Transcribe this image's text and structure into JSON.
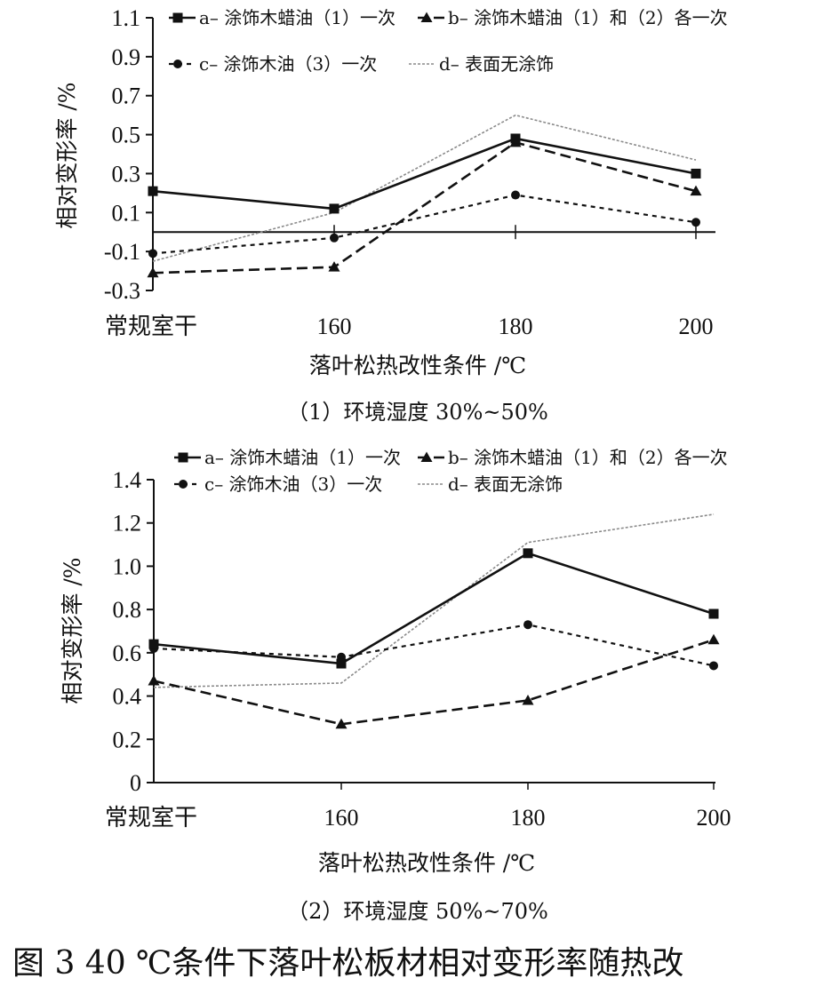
{
  "figure_caption": "图 3   40 ℃条件下落叶松板材相对变形率随热改",
  "legend": {
    "a": "a– 涂饰木蜡油（1）一次",
    "b": "b– 涂饰木蜡油（1）和（2）各一次",
    "c": "c– 涂饰木油（3）一次",
    "d": "d– 表面无涂饰"
  },
  "colors": {
    "a": "#111111",
    "b": "#111111",
    "c": "#111111",
    "d": "#8a8a8a"
  },
  "chart_data": [
    {
      "type": "line",
      "caption": "（1）环境湿度 30%~50%",
      "xlabel": "落叶松热改性条件 /℃",
      "ylabel": "相对变形率 /%",
      "categories": [
        "常规室干",
        "160",
        "180",
        "200"
      ],
      "yticks": [
        "1.1",
        "0.9",
        "0.7",
        "0.5",
        "0.3",
        "0.1",
        "-0.1",
        "-0.3"
      ],
      "ylim": [
        -0.3,
        1.1
      ],
      "zero_line": true,
      "series": [
        {
          "key": "a",
          "name": "a– 涂饰木蜡油（1）一次",
          "values": [
            0.21,
            0.12,
            0.48,
            0.3
          ]
        },
        {
          "key": "b",
          "name": "b– 涂饰木蜡油（1）和（2）各一次",
          "values": [
            -0.21,
            -0.18,
            0.46,
            0.21
          ]
        },
        {
          "key": "c",
          "name": "c– 涂饰木油（3）一次",
          "values": [
            -0.11,
            -0.03,
            0.19,
            0.05
          ]
        },
        {
          "key": "d",
          "name": "d– 表面无涂饰",
          "values": [
            -0.15,
            0.1,
            0.6,
            0.37
          ]
        }
      ]
    },
    {
      "type": "line",
      "caption": "（2）环境湿度 50%~70%",
      "xlabel": "落叶松热改性条件 /℃",
      "ylabel": "相对变形率 /%",
      "categories": [
        "常规室干",
        "160",
        "180",
        "200"
      ],
      "yticks": [
        "1.4",
        "1.2",
        "1.0",
        "0.8",
        "0.6",
        "0.4",
        "0.2",
        "0"
      ],
      "ylim": [
        0,
        1.4
      ],
      "zero_line": false,
      "series": [
        {
          "key": "a",
          "name": "a– 涂饰木蜡油（1）一次",
          "values": [
            0.64,
            0.55,
            1.06,
            0.78
          ]
        },
        {
          "key": "b",
          "name": "b– 涂饰木蜡油（1）和（2）各一次",
          "values": [
            0.47,
            0.27,
            0.38,
            0.66
          ]
        },
        {
          "key": "c",
          "name": "c– 涂饰木油（3）一次",
          "values": [
            0.62,
            0.58,
            0.73,
            0.54
          ]
        },
        {
          "key": "d",
          "name": "d– 表面无涂饰",
          "values": [
            0.44,
            0.46,
            1.11,
            1.24
          ]
        }
      ]
    }
  ]
}
